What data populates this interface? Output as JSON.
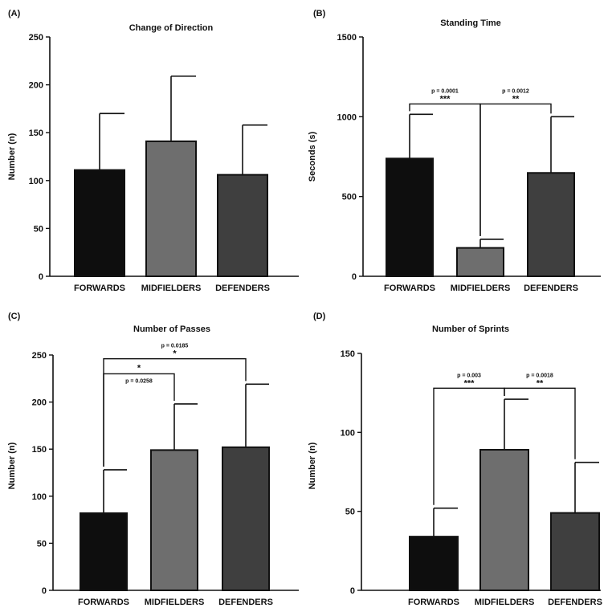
{
  "chart_data": [
    {
      "panel": "(A)",
      "type": "bar",
      "title": "Change of Direction",
      "ylabel": "Number (n)",
      "xlabel": "",
      "categories": [
        "FORWARDS",
        "MIDFIELDERS",
        "DEFENDERS"
      ],
      "values": [
        111,
        141,
        106
      ],
      "error_upper": [
        170,
        209,
        158
      ],
      "colors": [
        "#0e0e0e",
        "#6e6e6e",
        "#3f3f3f"
      ],
      "ylim": [
        0,
        250
      ],
      "yticks": [
        "0",
        "50",
        "100",
        "150",
        "200",
        "250"
      ],
      "yticks_values": [
        0,
        50,
        100,
        150,
        200,
        250
      ],
      "comparisons": []
    },
    {
      "panel": "(B)",
      "type": "bar",
      "title": "Standing Time",
      "ylabel": "Seconds (s)",
      "xlabel": "",
      "categories": [
        "FORWARDS",
        "MIDFIELDERS",
        "DEFENDERS"
      ],
      "values": [
        738,
        178,
        648
      ],
      "error_upper": [
        1015,
        232,
        1000
      ],
      "colors": [
        "#0e0e0e",
        "#6e6e6e",
        "#3f3f3f"
      ],
      "ylim": [
        0,
        1500
      ],
      "yticks": [
        "0",
        "500",
        "1000",
        "1500"
      ],
      "yticks_values": [
        0,
        500,
        1000,
        1500
      ],
      "comparisons": [
        {
          "from": 0,
          "to": 1,
          "y": 1080,
          "p": "p = 0.0001",
          "stars": "***"
        },
        {
          "from": 1,
          "to": 2,
          "y": 1080,
          "p": "p = 0.0012",
          "stars": "**"
        }
      ]
    },
    {
      "panel": "(C)",
      "type": "bar",
      "title": "Number of Passes",
      "ylabel": "Number (n)",
      "xlabel": "",
      "categories": [
        "FORWARDS",
        "MIDFIELDERS",
        "DEFENDERS"
      ],
      "values": [
        82,
        149,
        152
      ],
      "error_upper": [
        128,
        198,
        219
      ],
      "colors": [
        "#0e0e0e",
        "#6e6e6e",
        "#3f3f3f"
      ],
      "ylim": [
        0,
        250
      ],
      "yticks": [
        "0",
        "50",
        "100",
        "150",
        "200",
        "250"
      ],
      "yticks_values": [
        0,
        50,
        100,
        150,
        200,
        250
      ],
      "comparisons": [
        {
          "from": 0,
          "to": 1,
          "y": 230,
          "p": "p = 0.0258",
          "stars": "*",
          "p_below": true
        },
        {
          "from": 0,
          "to": 2,
          "y": 246,
          "p": "p = 0.0185",
          "stars": "*",
          "p_below": false
        }
      ]
    },
    {
      "panel": "(D)",
      "type": "bar",
      "title": "Number of Sprints",
      "ylabel": "Number (n)",
      "xlabel": "",
      "categories": [
        "FORWARDS",
        "MIDFIELDERS",
        "DEFENDERS"
      ],
      "values": [
        34,
        89,
        49
      ],
      "error_upper": [
        52,
        121,
        81
      ],
      "colors": [
        "#0e0e0e",
        "#6e6e6e",
        "#3f3f3f"
      ],
      "ylim": [
        0,
        150
      ],
      "yticks": [
        "0",
        "50",
        "100",
        "150"
      ],
      "yticks_values": [
        0,
        50,
        100,
        150
      ],
      "comparisons": [
        {
          "from": 0,
          "to": 1,
          "y": 128,
          "p": "p = 0.003",
          "stars": "***"
        },
        {
          "from": 1,
          "to": 2,
          "y": 128,
          "p": "p = 0.0018",
          "stars": "**"
        }
      ]
    }
  ]
}
